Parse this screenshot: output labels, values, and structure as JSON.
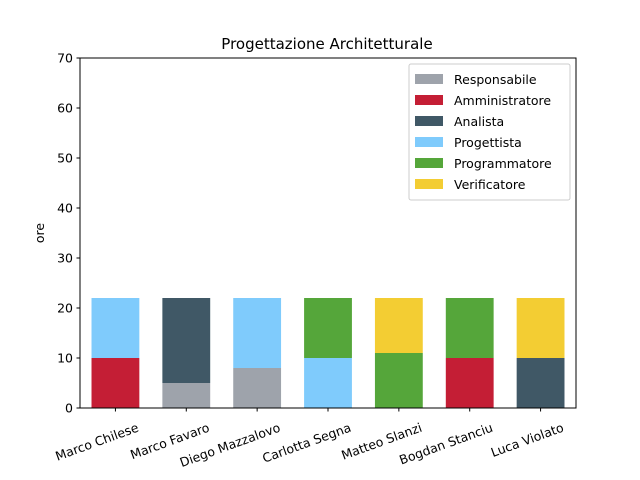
{
  "chart_data": {
    "type": "bar",
    "stacked": true,
    "title": "Progettazione Architetturale",
    "xlabel": "",
    "ylabel": "ore",
    "ylim": [
      0,
      70
    ],
    "yticks": [
      0,
      10,
      20,
      30,
      40,
      50,
      60,
      70
    ],
    "grid": false,
    "legend_position": "top-right",
    "categories": [
      "Marco Chilese",
      "Marco Favaro",
      "Diego Mazzalovo",
      "Carlotta Segna",
      "Matteo Slanzi",
      "Bogdan Stanciu",
      "Luca Violato"
    ],
    "series": [
      {
        "name": "Responsabile",
        "color": "#9ea3ab",
        "values": [
          0,
          5,
          8,
          0,
          0,
          0,
          0
        ]
      },
      {
        "name": "Amministratore",
        "color": "#c41e35",
        "values": [
          10,
          0,
          0,
          0,
          0,
          10,
          0
        ]
      },
      {
        "name": "Analista",
        "color": "#405866",
        "values": [
          0,
          17,
          0,
          0,
          0,
          0,
          10
        ]
      },
      {
        "name": "Progettista",
        "color": "#7fcbfc",
        "values": [
          12,
          0,
          14,
          10,
          0,
          0,
          0
        ]
      },
      {
        "name": "Programmatore",
        "color": "#55a63a",
        "values": [
          0,
          0,
          0,
          12,
          11,
          12,
          0
        ]
      },
      {
        "name": "Verificatore",
        "color": "#f3cd33",
        "values": [
          0,
          0,
          0,
          0,
          11,
          0,
          12
        ]
      }
    ]
  }
}
